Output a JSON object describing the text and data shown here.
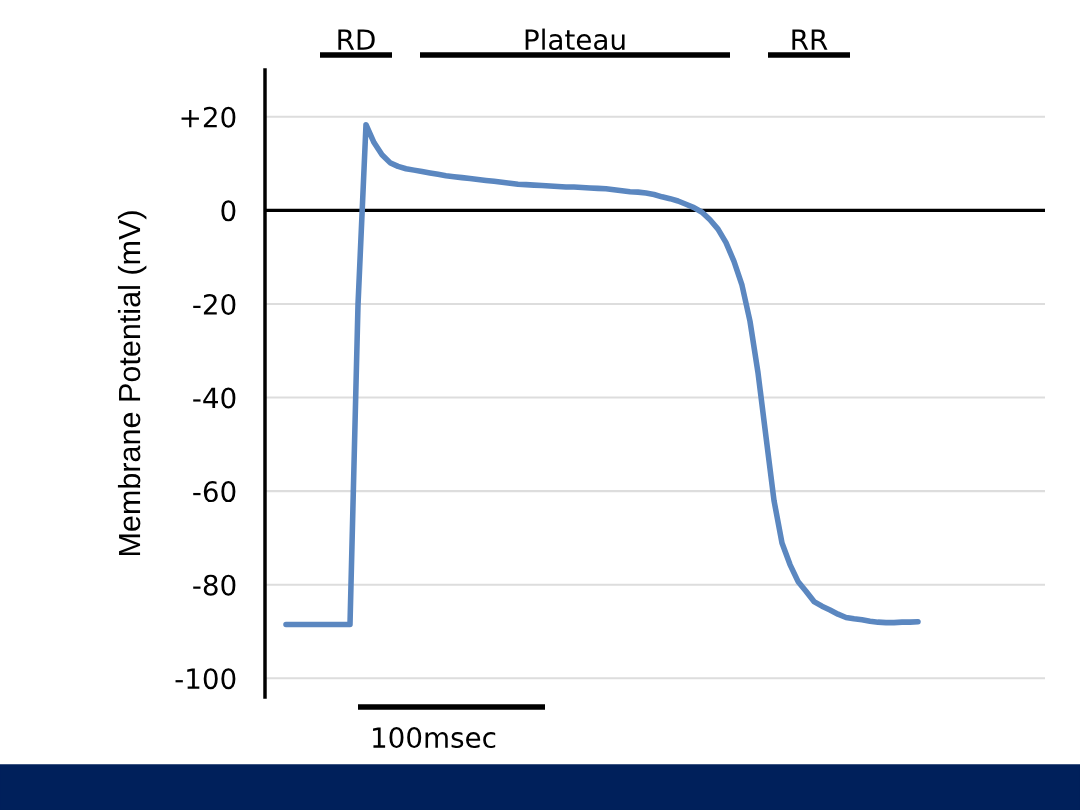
{
  "chart_data": {
    "type": "line",
    "ylabel": "Membrane Potential (mV)",
    "categories": [
      null,
      null,
      null,
      null,
      null,
      null,
      null,
      null,
      null,
      null,
      null,
      null,
      null,
      null,
      null,
      null,
      null,
      null,
      null,
      null,
      null,
      null,
      null,
      null,
      null,
      null,
      null,
      null,
      null,
      null,
      null,
      null,
      null,
      null,
      null,
      null,
      null,
      null,
      null,
      null,
      null,
      null,
      null,
      null,
      null,
      null,
      null,
      null,
      null,
      null,
      null,
      null,
      null,
      null,
      null,
      null,
      null,
      null,
      null,
      null,
      null,
      null,
      null,
      null,
      null,
      null,
      null,
      null,
      null,
      null,
      null,
      null,
      null,
      null,
      null,
      null,
      null,
      null,
      null,
      null
    ],
    "ylim": [
      -104,
      30
    ],
    "yticks": [
      {
        "value": 20,
        "label": "+20"
      },
      0,
      -20,
      -40,
      -60,
      -80,
      -100
    ],
    "tick_labels": "y",
    "grid": "y",
    "legend": false,
    "series": [
      {
        "color": "#5b87c0",
        "values": [
          -88.5,
          -88.5,
          -88.5,
          -88.5,
          -88.5,
          -88.5,
          -88.5,
          -88.5,
          -88.5,
          -20.2,
          18.3,
          14.5,
          11.9,
          10.2,
          9.4,
          8.9,
          8.6,
          8.3,
          8.0,
          7.7,
          7.4,
          7.2,
          7.0,
          6.8,
          6.6,
          6.4,
          6.2,
          6.0,
          5.8,
          5.6,
          5.5,
          5.4,
          5.3,
          5.2,
          5.1,
          5.0,
          5.0,
          4.9,
          4.8,
          4.7,
          4.6,
          4.4,
          4.2,
          4.0,
          3.9,
          3.7,
          3.4,
          2.9,
          2.5,
          2.0,
          1.3,
          0.6,
          -0.4,
          -2.0,
          -4.0,
          -6.9,
          -10.9,
          -16.0,
          -23.7,
          -34.7,
          -48.4,
          -62.0,
          -71.1,
          -75.7,
          -79.3,
          -81.4,
          -83.6,
          -84.6,
          -85.4,
          -86.3,
          -87.0,
          -87.3,
          -87.5,
          -87.8,
          -88.0,
          -88.1,
          -88.1,
          -88.0,
          -88.0,
          -87.9
        ]
      }
    ],
    "ref_lines": [
      {
        "axis": "y",
        "value": 0,
        "color": "#000000"
      }
    ],
    "annotations": [
      "RD",
      "Plateau",
      "RR",
      "100msec"
    ]
  }
}
